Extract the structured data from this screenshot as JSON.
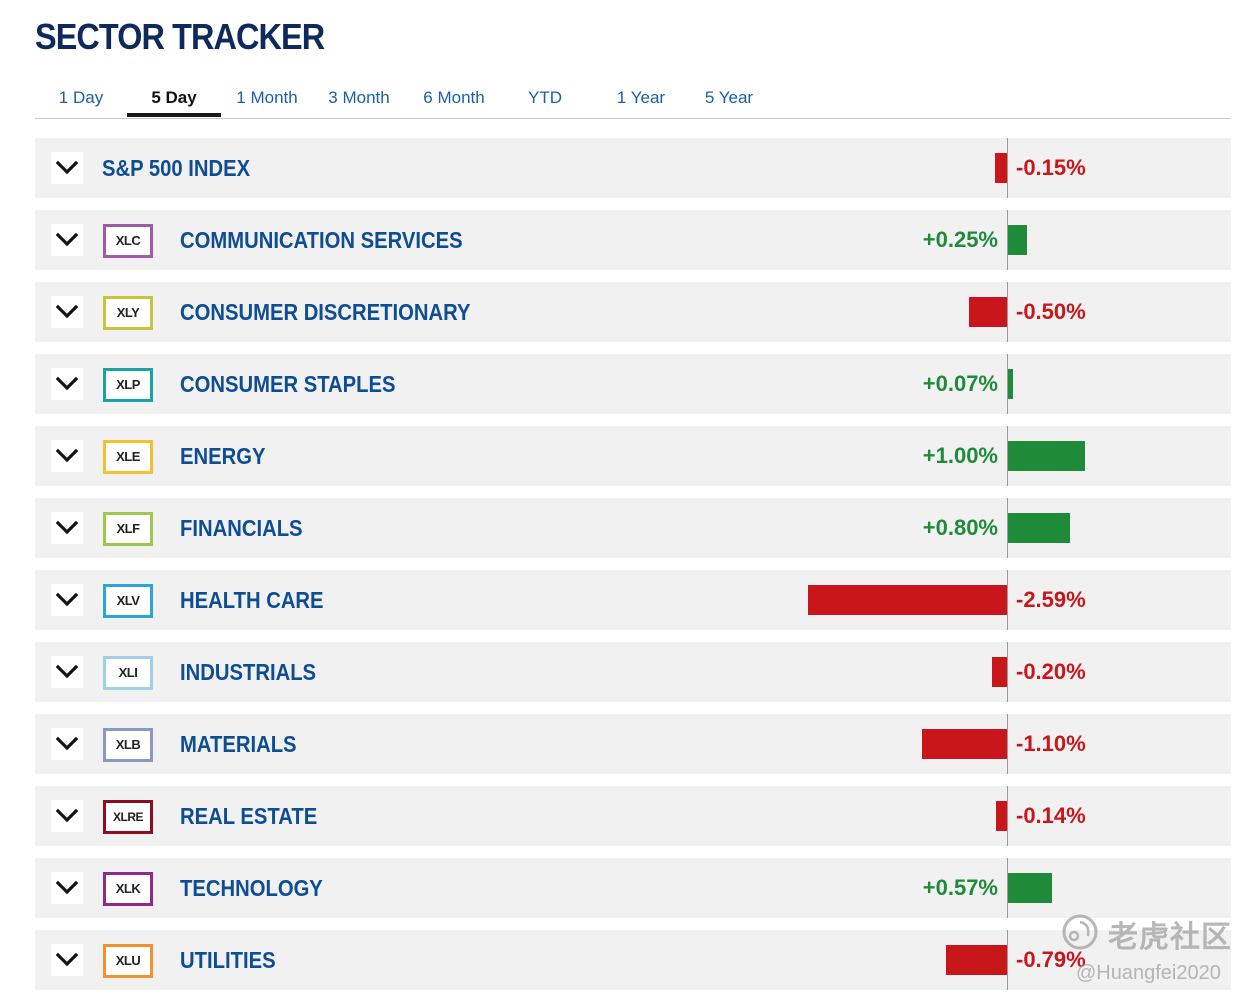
{
  "page": {
    "title": "SECTOR TRACKER"
  },
  "tabs": [
    {
      "label": "1 Day",
      "active": false
    },
    {
      "label": "5 Day",
      "active": true
    },
    {
      "label": "1 Month",
      "active": false
    },
    {
      "label": "3 Month",
      "active": false
    },
    {
      "label": "6 Month",
      "active": false
    },
    {
      "label": "YTD",
      "active": false
    },
    {
      "label": "1 Year",
      "active": false
    },
    {
      "label": "5 Year",
      "active": false
    }
  ],
  "colors": {
    "positive": "#1e8a3a",
    "negative": "#c8161a",
    "name": "#0e4d94"
  },
  "rows": [
    {
      "name": "S&P 500 INDEX",
      "ticker": "",
      "change": -0.15,
      "change_label": "-0.15%",
      "badge_color": ""
    },
    {
      "name": "COMMUNICATION SERVICES",
      "ticker": "XLC",
      "change": 0.25,
      "change_label": "+0.25%",
      "badge_color": "#a05aa8"
    },
    {
      "name": "CONSUMER DISCRETIONARY",
      "ticker": "XLY",
      "change": -0.5,
      "change_label": "-0.50%",
      "badge_color": "#c9c23c"
    },
    {
      "name": "CONSUMER STAPLES",
      "ticker": "XLP",
      "change": 0.07,
      "change_label": "+0.07%",
      "badge_color": "#1aa3a8"
    },
    {
      "name": "ENERGY",
      "ticker": "XLE",
      "change": 1.0,
      "change_label": "+1.00%",
      "badge_color": "#f2c22e"
    },
    {
      "name": "FINANCIALS",
      "ticker": "XLF",
      "change": 0.8,
      "change_label": "+0.80%",
      "badge_color": "#9bc952"
    },
    {
      "name": "HEALTH CARE",
      "ticker": "XLV",
      "change": -2.59,
      "change_label": "-2.59%",
      "badge_color": "#2aa7d8"
    },
    {
      "name": "INDUSTRIALS",
      "ticker": "XLI",
      "change": -0.2,
      "change_label": "-0.20%",
      "badge_color": "#9fd0e8"
    },
    {
      "name": "MATERIALS",
      "ticker": "XLB",
      "change": -1.1,
      "change_label": "-1.10%",
      "badge_color": "#8a98c4"
    },
    {
      "name": "REAL ESTATE",
      "ticker": "XLRE",
      "change": -0.14,
      "change_label": "-0.14%",
      "badge_color": "#8a1020"
    },
    {
      "name": "TECHNOLOGY",
      "ticker": "XLK",
      "change": 0.57,
      "change_label": "+0.57%",
      "badge_color": "#8e2a8c"
    },
    {
      "name": "UTILITIES",
      "ticker": "XLU",
      "change": -0.79,
      "change_label": "-0.79%",
      "badge_color": "#f0922e"
    }
  ],
  "watermark": {
    "brand": "老虎社区",
    "user": "@Huangfei2020"
  }
}
